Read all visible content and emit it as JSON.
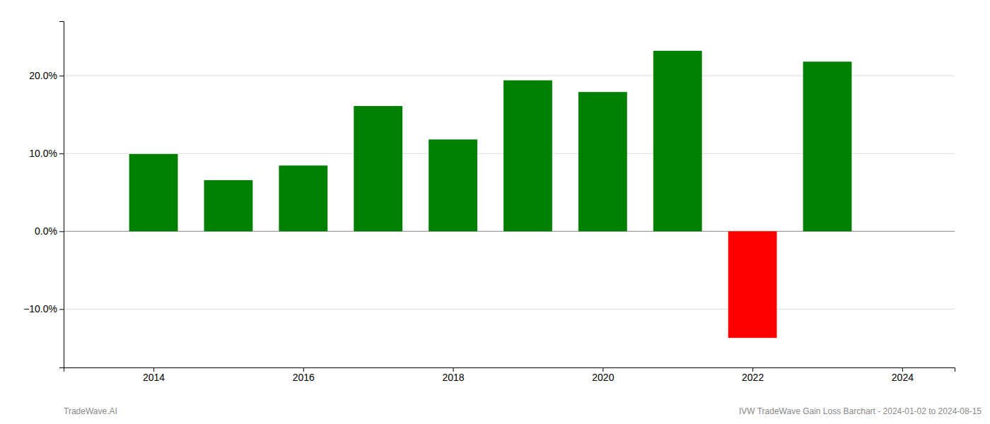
{
  "chart_data": {
    "type": "bar",
    "x": [
      2014,
      2015,
      2016,
      2017,
      2018,
      2019,
      2020,
      2021,
      2022,
      2023
    ],
    "values": [
      0.0993,
      0.0657,
      0.0845,
      0.161,
      0.118,
      0.194,
      0.179,
      0.232,
      -0.137,
      0.218
    ],
    "colors": [
      "#008000",
      "#008000",
      "#008000",
      "#008000",
      "#008000",
      "#008000",
      "#008000",
      "#008000",
      "#ff0000",
      "#008000"
    ],
    "xlim": [
      2012.8,
      2024.7
    ],
    "xticks": [
      2014,
      2016,
      2018,
      2020,
      2022,
      2024
    ],
    "ylim": [
      -0.175,
      0.27
    ],
    "yticks": [
      {
        "value": -0.1,
        "label": "−10.0%"
      },
      {
        "value": 0.0,
        "label": "0.0%"
      },
      {
        "value": 0.1,
        "label": "10.0%"
      },
      {
        "value": 0.2,
        "label": "20.0%"
      }
    ],
    "grid": true,
    "annotations": [
      "TradeWave.AI",
      "IVW TradeWave Gain Loss Barchart - 2024-01-02 to 2024-08-15"
    ]
  }
}
